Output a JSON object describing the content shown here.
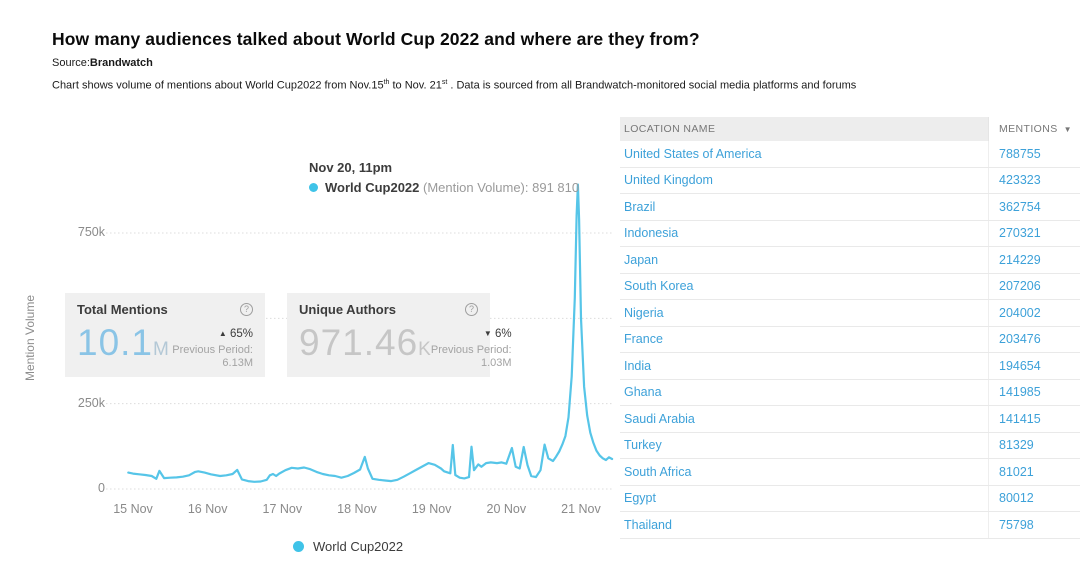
{
  "header": {
    "title": "How many audiences talked about World Cup 2022 and where are they from?",
    "source_label": "Source:",
    "source_value": "Brandwatch",
    "subtitle": {
      "part1": "Chart shows volume of mentions about World Cup2022 from Nov.15",
      "sup1": "th",
      "part2": " to Nov. 21",
      "sup2": "st",
      "part3": " . Data is sourced from all Brandwatch-monitored social media platforms and forums"
    }
  },
  "tooltip": {
    "date": "Nov 20, 11pm",
    "series": "World Cup2022",
    "metric": " (Mention Volume): ",
    "value": "891 810"
  },
  "cards": [
    {
      "title": "Total Mentions",
      "help": "?",
      "value": "10.1",
      "unit": "M",
      "trend_arrow": "▲",
      "trend_pct": "65%",
      "prev_label": "Previous Period:",
      "prev_value": "6.13M"
    },
    {
      "title": "Unique Authors",
      "help": "?",
      "value": "971.46",
      "unit": "K",
      "trend_arrow": "▼",
      "trend_pct": "6%",
      "prev_label": "Previous Period:",
      "prev_value": "1.03M"
    }
  ],
  "legend": {
    "label": "World Cup2022",
    "color": "#3fc3e8"
  },
  "chart_data": {
    "type": "line",
    "title": "World Cup2022 mention volume, Nov 15 - Nov 21",
    "xlabel": "",
    "ylabel": "Mention Volume",
    "x_unit": "hours since Nov 15 00:00",
    "ylim": [
      0,
      937500
    ],
    "grid": true,
    "legend_position": "bottom",
    "xticks": [
      {
        "h": 0,
        "label": "15 Nov"
      },
      {
        "h": 24,
        "label": "16 Nov"
      },
      {
        "h": 48,
        "label": "17 Nov"
      },
      {
        "h": 72,
        "label": "18 Nov"
      },
      {
        "h": 96,
        "label": "19 Nov"
      },
      {
        "h": 120,
        "label": "20 Nov"
      },
      {
        "h": 144,
        "label": "21 Nov"
      }
    ],
    "yticks": [
      {
        "v": 750000,
        "label": "750k"
      },
      {
        "v": 500000,
        "label": ""
      },
      {
        "v": 250000,
        "label": "250k"
      },
      {
        "v": 0,
        "label": "0"
      }
    ],
    "series": [
      {
        "name": "World Cup2022",
        "color": "#56c5e8",
        "points": [
          [
            -1.5,
            48000
          ],
          [
            0,
            45000
          ],
          [
            2,
            43000
          ],
          [
            4,
            41000
          ],
          [
            6,
            38000
          ],
          [
            7.5,
            30000
          ],
          [
            8.5,
            53000
          ],
          [
            10,
            32000
          ],
          [
            12,
            33000
          ],
          [
            14,
            34000
          ],
          [
            16,
            36000
          ],
          [
            18,
            40000
          ],
          [
            20,
            50000
          ],
          [
            21,
            52000
          ],
          [
            23,
            48000
          ],
          [
            25,
            43000
          ],
          [
            28,
            38000
          ],
          [
            30,
            40000
          ],
          [
            32,
            44000
          ],
          [
            33.5,
            56000
          ],
          [
            35,
            28000
          ],
          [
            37,
            23000
          ],
          [
            39,
            21000
          ],
          [
            41,
            22000
          ],
          [
            43,
            27000
          ],
          [
            44,
            40000
          ],
          [
            45,
            44000
          ],
          [
            46,
            38000
          ],
          [
            47,
            45000
          ],
          [
            49,
            55000
          ],
          [
            51,
            62000
          ],
          [
            53,
            60000
          ],
          [
            55,
            63000
          ],
          [
            57,
            58000
          ],
          [
            59,
            50000
          ],
          [
            61,
            44000
          ],
          [
            63,
            40000
          ],
          [
            65,
            38000
          ],
          [
            67,
            33000
          ],
          [
            69,
            38000
          ],
          [
            71,
            47000
          ],
          [
            73,
            57000
          ],
          [
            74.5,
            94000
          ],
          [
            75.5,
            60000
          ],
          [
            77,
            30000
          ],
          [
            79,
            27000
          ],
          [
            81,
            25000
          ],
          [
            83,
            23000
          ],
          [
            85,
            27000
          ],
          [
            87,
            36000
          ],
          [
            89,
            46000
          ],
          [
            91,
            56000
          ],
          [
            93,
            66000
          ],
          [
            95,
            76000
          ],
          [
            97,
            71000
          ],
          [
            99,
            60000
          ],
          [
            100,
            52000
          ],
          [
            102,
            46000
          ],
          [
            102.8,
            129000
          ],
          [
            103.6,
            41000
          ],
          [
            105,
            33000
          ],
          [
            106.5,
            31000
          ],
          [
            108,
            35000
          ],
          [
            108.8,
            124000
          ],
          [
            109.6,
            55000
          ],
          [
            111,
            72000
          ],
          [
            112,
            65000
          ],
          [
            113.5,
            76000
          ],
          [
            115,
            78000
          ],
          [
            117,
            76000
          ],
          [
            118.5,
            78000
          ],
          [
            120,
            74000
          ],
          [
            121.8,
            120000
          ],
          [
            123,
            65000
          ],
          [
            124.3,
            60000
          ],
          [
            125.6,
            123000
          ],
          [
            126.8,
            70000
          ],
          [
            128,
            38000
          ],
          [
            129.5,
            35000
          ],
          [
            131,
            55000
          ],
          [
            132.3,
            130000
          ],
          [
            133.5,
            90000
          ],
          [
            135,
            82000
          ],
          [
            136,
            95000
          ],
          [
            137,
            110000
          ],
          [
            138,
            130000
          ],
          [
            139,
            155000
          ],
          [
            140,
            210000
          ],
          [
            141,
            330000
          ],
          [
            142,
            560000
          ],
          [
            142.6,
            800000
          ],
          [
            143,
            891810
          ],
          [
            143.4,
            790000
          ],
          [
            144,
            500000
          ],
          [
            145,
            300000
          ],
          [
            146,
            215000
          ],
          [
            147,
            165000
          ],
          [
            148,
            135000
          ],
          [
            149,
            112000
          ],
          [
            150,
            98000
          ],
          [
            151,
            90000
          ],
          [
            152,
            85000
          ],
          [
            153,
            93000
          ],
          [
            154,
            88000
          ]
        ],
        "peak_annotation": {
          "time": "Nov 20, 11pm",
          "value": 891810
        }
      }
    ]
  },
  "table": {
    "headers": [
      {
        "label": "LOCATION NAME"
      },
      {
        "label": "MENTIONS",
        "sort": "desc",
        "sort_icon": "▼"
      }
    ],
    "rows": [
      [
        "United States of America",
        "788755"
      ],
      [
        "United Kingdom",
        "423323"
      ],
      [
        "Brazil",
        "362754"
      ],
      [
        "Indonesia",
        "270321"
      ],
      [
        "Japan",
        "214229"
      ],
      [
        "South Korea",
        "207206"
      ],
      [
        "Nigeria",
        "204002"
      ],
      [
        "France",
        "203476"
      ],
      [
        "India",
        "194654"
      ],
      [
        "Ghana",
        "141985"
      ],
      [
        "Saudi Arabia",
        "141415"
      ],
      [
        "Turkey",
        "81329"
      ],
      [
        "South Africa",
        "81021"
      ],
      [
        "Egypt",
        "80012"
      ],
      [
        "Thailand",
        "75798"
      ]
    ]
  },
  "colors": {
    "line_cyan": "#56c5e8",
    "legend_dot": "#3fc3e8",
    "link_blue": "#3da1d9",
    "kpi_value_blue": "#8ac4e6",
    "kpi_value_gray": "#c6c6c6",
    "card_bg": "#f0f0f0",
    "gridline": "#dcdcdc",
    "axis_text": "#8a8a8a"
  }
}
